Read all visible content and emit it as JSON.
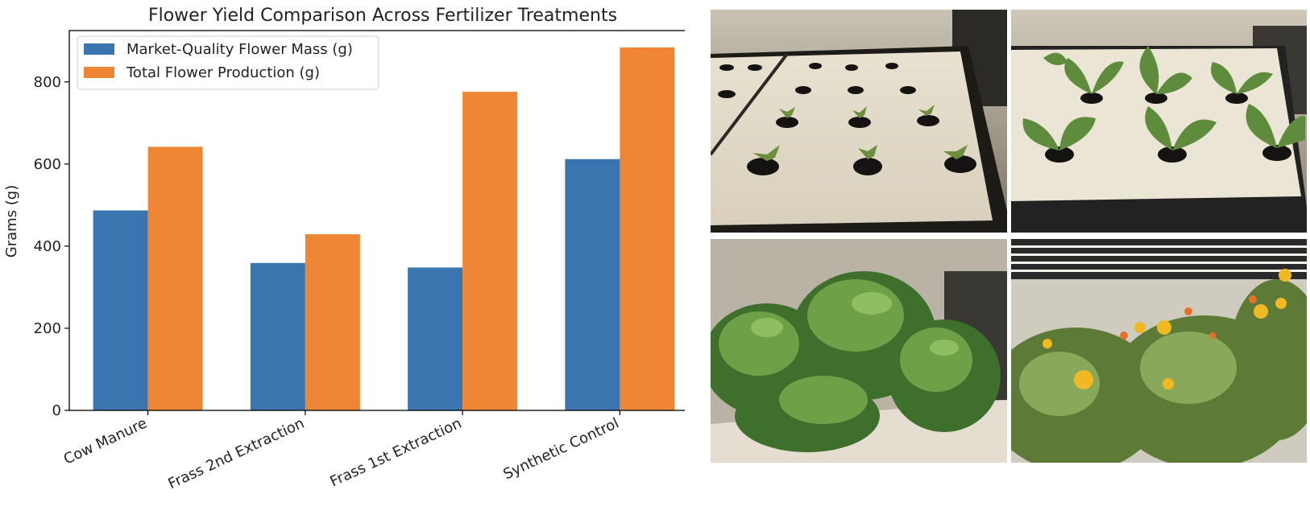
{
  "chart_data": {
    "type": "bar",
    "title": "Flower Yield Comparison Across Fertilizer Treatments",
    "xlabel": "",
    "ylabel": "Grams (g)",
    "categories": [
      "Cow Manure",
      "Frass 2nd Extraction",
      "Frass 1st Extraction",
      "Synthetic Control"
    ],
    "series": [
      {
        "name": "Market-Quality Flower Mass (g)",
        "color": "#3a75b0",
        "values": [
          487,
          359,
          348,
          612
        ]
      },
      {
        "name": "Total Flower Production (g)",
        "color": "#ef8636",
        "values": [
          642,
          429,
          776,
          884
        ]
      }
    ],
    "ylim": [
      0,
      925
    ],
    "yticks": [
      0,
      200,
      400,
      600,
      800
    ],
    "legend": "top-left",
    "grid": false
  },
  "photos": [
    {
      "stage": "seedlings",
      "theme": "young-seedlings"
    },
    {
      "stage": "young plants",
      "theme": "young-plants"
    },
    {
      "stage": "bushy vegetative plants",
      "theme": "bushy-plants"
    },
    {
      "stage": "flowering marigolds",
      "theme": "flowering-marigolds"
    }
  ]
}
